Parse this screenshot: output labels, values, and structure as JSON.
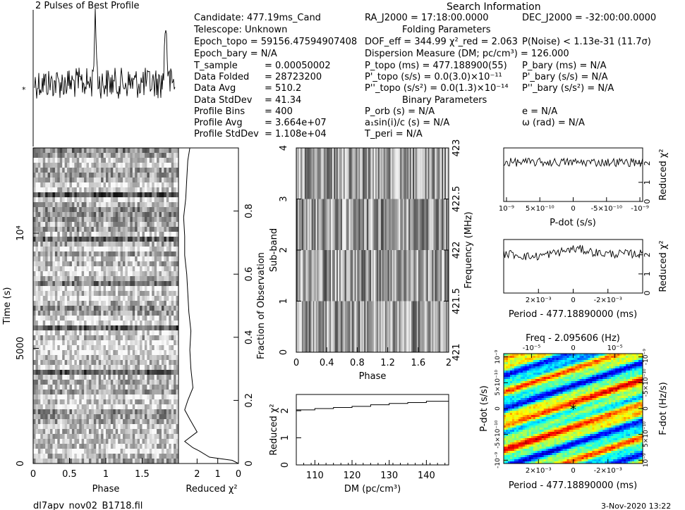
{
  "title": "2 Pulses of Best Profile",
  "search_info": {
    "heading": "Search Information",
    "folding_heading": "Folding Parameters",
    "binary_heading": "Binary Parameters",
    "col1": [
      [
        "Candidate:  477.19ms_Cand",
        ""
      ],
      [
        "Telescope:  Unknown",
        ""
      ],
      [
        "Epoch_topo = 59156.47594907408",
        ""
      ],
      [
        "Epoch_bary = N/A",
        ""
      ],
      [
        "T_sample",
        "= 0.00050002"
      ],
      [
        "Data Folded",
        "= 28723200"
      ],
      [
        "Data Avg",
        "= 510.2"
      ],
      [
        "Data StdDev",
        "= 41.34"
      ],
      [
        "Profile Bins",
        "= 400"
      ],
      [
        "Profile Avg",
        "= 3.664e+07"
      ],
      [
        "Profile StdDev",
        "= 1.108e+04"
      ]
    ],
    "ra": "RA_J2000 = 17:18:00.0000",
    "dec": "DEC_J2000 = -32:00:00.0000",
    "dof": "DOF_eff = 344.99  χ²_red = 2.063",
    "pnoise": "P(Noise) < 1.13e-31   (11.7σ)",
    "dm": "Dispersion Measure (DM; pc/cm³) = 126.000",
    "p_topo": "P_topo (ms) = 477.188900(55)",
    "p_bary": "P_bary (ms) = N/A",
    "pd_topo": "P'_topo (s/s) = 0.0(3.0)×10⁻¹¹",
    "pd_bary": "P'_bary (s/s) = N/A",
    "pdd_topo": "P''_topo (s/s²) = 0.0(1.3)×10⁻¹⁴",
    "pdd_bary": "P''_bary (s/s²) = N/A",
    "p_orb": "P_orb (s) = N/A",
    "ecc": "e = N/A",
    "a1": "a₁sin(i)/c (s) = N/A",
    "omega": "ω (rad) = N/A",
    "t_peri": "T_peri = N/A"
  },
  "footer": {
    "filename": "dl7apv_nov02_B1718.fil",
    "date": "3-Nov-2020 13:22"
  },
  "colors": {
    "ink": "#000000",
    "bg": "#ffffff",
    "ppdot_low": "#1a2bd6",
    "ppdot_mid": "#14d6c0",
    "ppdot_high": "#e03a1e"
  },
  "chart_data": [
    {
      "id": "pulse-profile",
      "type": "line",
      "title": "2 Pulses of Best Profile",
      "xlim": [
        0,
        2
      ],
      "note_left_marker": "*",
      "shape": "noisy-two-pulse"
    },
    {
      "id": "time-phase",
      "type": "heatmap",
      "xlabel": "Phase",
      "ylabel": "Time (s)",
      "xticks": [
        "0",
        "0.5",
        "1",
        "1.5"
      ],
      "yticks": [
        "0",
        "5000",
        "10⁴"
      ],
      "xlim": [
        0,
        2
      ],
      "ylim": [
        0,
        13700
      ],
      "colormap": "grayscale"
    },
    {
      "id": "chi2-vs-time",
      "type": "line",
      "xlabel": "Reduced χ²",
      "ylabel": "Fraction of Observation",
      "xticks": [
        "2",
        "1",
        "0"
      ],
      "yticks": [
        "0",
        "0.2",
        "0.4",
        "0.6",
        "0.8"
      ],
      "xlim": [
        2.9,
        0
      ],
      "ylim": [
        0,
        1
      ],
      "points": [
        [
          0,
          0
        ],
        [
          0.3,
          0.01
        ],
        [
          1.4,
          0.02
        ],
        [
          1.9,
          0.04
        ],
        [
          2.2,
          0.05
        ],
        [
          2.6,
          0.07
        ],
        [
          2.0,
          0.1
        ],
        [
          2.35,
          0.14
        ],
        [
          2.6,
          0.17
        ],
        [
          2.45,
          0.2
        ],
        [
          2.2,
          0.24
        ],
        [
          2.3,
          0.3
        ],
        [
          2.35,
          0.36
        ],
        [
          2.3,
          0.42
        ],
        [
          2.4,
          0.48
        ],
        [
          2.45,
          0.54
        ],
        [
          2.5,
          0.6
        ],
        [
          2.6,
          0.66
        ],
        [
          2.6,
          0.72
        ],
        [
          2.65,
          0.78
        ],
        [
          2.55,
          0.84
        ],
        [
          2.5,
          0.9
        ],
        [
          2.45,
          0.96
        ],
        [
          2.35,
          1.0
        ]
      ]
    },
    {
      "id": "subband-phase",
      "type": "heatmap",
      "xlabel": "Phase",
      "ylabel": "Sub-band",
      "y2label": "Frequency (MHz)",
      "xticks": [
        "0",
        "0.4",
        "0.8",
        "1.2",
        "1.6",
        "2"
      ],
      "yticks": [
        "0",
        "1",
        "2",
        "3",
        "4"
      ],
      "y2ticks": [
        "421",
        "421.5",
        "422",
        "422.5",
        "423"
      ],
      "xlim": [
        0,
        2
      ],
      "ylim": [
        0,
        4
      ],
      "colormap": "grayscale"
    },
    {
      "id": "chi2-vs-dm",
      "type": "line",
      "xlabel": "DM (pc/cm³)",
      "ylabel": "Reduced χ²",
      "xticks": [
        "110",
        "120",
        "130",
        "140"
      ],
      "yticks": [
        "0",
        "1",
        "2"
      ],
      "xlim": [
        105,
        146
      ],
      "ylim": [
        0,
        2.6
      ],
      "points": [
        [
          105,
          2.03
        ],
        [
          110,
          2.03
        ],
        [
          110,
          2.08
        ],
        [
          115,
          2.08
        ],
        [
          115,
          2.12
        ],
        [
          120,
          2.12
        ],
        [
          120,
          2.16
        ],
        [
          125,
          2.16
        ],
        [
          125,
          2.22
        ],
        [
          130,
          2.22
        ],
        [
          130,
          2.27
        ],
        [
          135,
          2.27
        ],
        [
          135,
          2.3
        ],
        [
          140,
          2.3
        ],
        [
          140,
          2.35
        ],
        [
          146,
          2.35
        ]
      ]
    },
    {
      "id": "chi2-vs-pdot",
      "type": "line",
      "xlabel": "P-dot (s/s)",
      "ylabel": "Reduced χ²",
      "xticks": [
        "10⁻⁹",
        "5×10⁻¹⁰",
        "0",
        "-5×10⁻¹⁰",
        "-10⁻⁹"
      ],
      "yticks": [
        "0",
        "1",
        "2"
      ],
      "ylim": [
        0,
        2.8
      ],
      "shape": "noisy-flat-2.1"
    },
    {
      "id": "chi2-vs-period",
      "type": "line",
      "xlabel": "Period - 477.18890000 (ms)",
      "ylabel": "Reduced χ²",
      "xticks": [
        "2×10⁻³",
        "0",
        "-2×10⁻³"
      ],
      "yticks": [
        "0",
        "1",
        "2"
      ],
      "ylim": [
        0,
        2.8
      ],
      "shape": "noisy-bump-2.1"
    },
    {
      "id": "p-pdot-plane",
      "type": "heatmap",
      "title": "Freq - 2.095606 (Hz)",
      "xlabel": "Period - 477.18890000 (ms)",
      "ylabel": "P-dot (s/s)",
      "y2label": "F-dot (Hz/s)",
      "xticks": [
        "2×10⁻³",
        "0",
        "-2×10⁻³"
      ],
      "x2ticks": [
        "-10⁻⁵",
        "0",
        "10⁻⁵"
      ],
      "yticks": [
        "10⁻⁹",
        "5×10⁻¹⁰",
        "0",
        "-5×10⁻¹⁰",
        "-10⁻⁹"
      ],
      "y2ticks": [
        "-10⁻⁹",
        "-5×10⁻¹⁰",
        "0",
        "5×10⁻¹⁰",
        "10⁻⁹"
      ],
      "colormap": "jet",
      "best_marker": "*"
    }
  ]
}
